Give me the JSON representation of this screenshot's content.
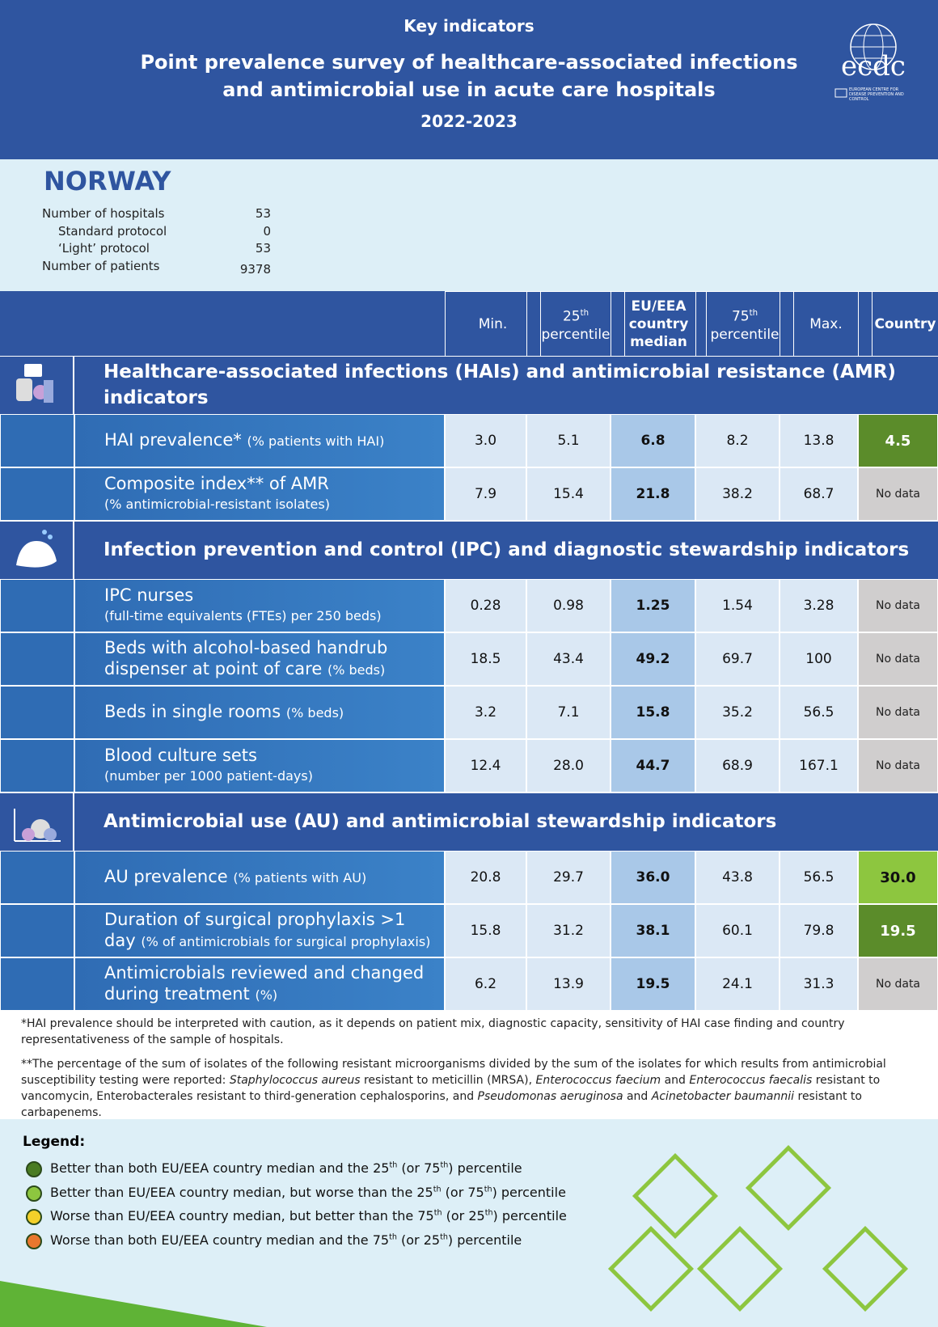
{
  "header": {
    "kicker": "Key indicators",
    "title": "Point prevalence survey of healthcare-associated infections and antimicrobial use in acute care hospitals",
    "years": "2022-2023",
    "logo": "ecdc",
    "logo_subtitle": "EUROPEAN CENTRE FOR DISEASE PREVENTION AND CONTROL"
  },
  "country": "NORWAY",
  "summary": [
    {
      "label": "Number of hospitals",
      "value": "53"
    },
    {
      "label": "Standard protocol",
      "value": "0",
      "indent": true
    },
    {
      "label": "‘Light’ protocol",
      "value": "53",
      "indent": true
    },
    {
      "label": "Number of patients",
      "value": "9378"
    }
  ],
  "table": {
    "columns": [
      {
        "parts": [
          {
            "text": "Min."
          }
        ]
      },
      {
        "parts": [
          {
            "text": "25"
          },
          {
            "text": "th",
            "sup": true
          },
          {
            "text": " percentile"
          }
        ]
      },
      {
        "parts": [
          {
            "text": "EU/EEA country median"
          }
        ],
        "bold": true,
        "highlight": true
      },
      {
        "parts": [
          {
            "text": "75"
          },
          {
            "text": "th",
            "sup": true
          },
          {
            "text": " percentile"
          }
        ]
      },
      {
        "parts": [
          {
            "text": "Max."
          }
        ]
      },
      {
        "parts": [
          {
            "text": "Country"
          }
        ],
        "bold": true
      }
    ],
    "sections": [
      {
        "title": "Healthcare-associated infections (HAIs) and antimicrobial resistance (AMR) indicators",
        "icon": "pills",
        "rows": [
          {
            "label": "HAI prevalence*",
            "unit": "(% patients with HAI)",
            "values": [
              "3.0",
              "5.1",
              "6.8",
              "8.2",
              "13.8"
            ],
            "country": {
              "text": "4.5",
              "color": "#5b8c2a"
            }
          },
          {
            "label": "Composite index** of AMR",
            "unit": "(% antimicrobial-resistant isolates)",
            "values": [
              "7.9",
              "15.4",
              "21.8",
              "38.2",
              "68.7"
            ],
            "country": {
              "text": "No data",
              "color": "#d0cece"
            }
          }
        ]
      },
      {
        "title": "Infection prevention and control (IPC) and diagnostic stewardship indicators",
        "icon": "hands",
        "rows": [
          {
            "label": "IPC nurses",
            "unit": "(full-time equivalents (FTEs) per 250 beds)",
            "values": [
              "0.28",
              "0.98",
              "1.25",
              "1.54",
              "3.28"
            ],
            "country": {
              "text": "No data",
              "color": "#d0cece"
            }
          },
          {
            "label": "Beds with alcohol-based handrub dispenser at point of care",
            "unit": "(% beds)",
            "values": [
              "18.5",
              "43.4",
              "49.2",
              "69.7",
              "100"
            ],
            "country": {
              "text": "No data",
              "color": "#d0cece"
            }
          },
          {
            "label": "Beds in single rooms",
            "unit": "(% beds)",
            "values": [
              "3.2",
              "7.1",
              "15.8",
              "35.2",
              "56.5"
            ],
            "country": {
              "text": "No data",
              "color": "#d0cece"
            }
          },
          {
            "label": "Blood culture sets",
            "unit": "(number per 1000 patient-days)",
            "values": [
              "12.4",
              "28.0",
              "44.7",
              "68.9",
              "167.1"
            ],
            "country": {
              "text": "No data",
              "color": "#d0cece"
            }
          }
        ]
      },
      {
        "title": "Antimicrobial use (AU) and antimicrobial stewardship indicators",
        "icon": "chart",
        "rows": [
          {
            "label": "AU prevalence",
            "unit": "(% patients with AU)",
            "values": [
              "20.8",
              "29.7",
              "36.0",
              "43.8",
              "56.5"
            ],
            "country": {
              "text": "30.0",
              "color": "#8dc63f"
            }
          },
          {
            "label": "Duration of surgical prophylaxis >1 day",
            "unit": "(% of antimicrobials for surgical prophylaxis)",
            "values": [
              "15.8",
              "31.2",
              "38.1",
              "60.1",
              "79.8"
            ],
            "country": {
              "text": "19.5",
              "color": "#5b8c2a"
            }
          },
          {
            "label": "Antimicrobials reviewed and changed during treatment",
            "unit": "(%)",
            "values": [
              "6.2",
              "13.9",
              "19.5",
              "24.1",
              "31.3"
            ],
            "country": {
              "text": "No data",
              "color": "#d0cece"
            }
          }
        ]
      }
    ]
  },
  "footnotes": [
    [
      {
        "text": "*HAI prevalence should be interpreted with caution, as it depends on patient mix, diagnostic capacity, sensitivity of HAI case finding and country representativeness of the sample of hospitals."
      }
    ],
    [
      {
        "text": "**The percentage of the sum of isolates of the following resistant microorganisms divided by the sum of the isolates for which results from antimicrobial susceptibility testing were reported: "
      },
      {
        "text": "Staphylococcus aureus",
        "italic": true
      },
      {
        "text": " resistant to meticillin (MRSA), "
      },
      {
        "text": "Enterococcus faecium",
        "italic": true
      },
      {
        "text": " and "
      },
      {
        "text": "Enterococcus faecalis",
        "italic": true
      },
      {
        "text": " resistant to vancomycin, Enterobacterales resistant to third-generation cephalosporins, and "
      },
      {
        "text": "Pseudomonas aeruginosa",
        "italic": true
      },
      {
        "text": " and "
      },
      {
        "text": "Acinetobacter baumannii",
        "italic": true
      },
      {
        "text": " resistant to carbapenems."
      }
    ]
  ],
  "legend": {
    "title": "Legend:",
    "items": [
      {
        "color": "#4a7c23",
        "parts": [
          {
            "text": "Better than both EU/EEA country median and the 25"
          },
          {
            "text": "th",
            "sup": true
          },
          {
            "text": " (or 75"
          },
          {
            "text": "th",
            "sup": true
          },
          {
            "text": ") percentile"
          }
        ]
      },
      {
        "color": "#8dc63f",
        "parts": [
          {
            "text": "Better than EU/EEA country median, but worse than the 25"
          },
          {
            "text": "th",
            "sup": true
          },
          {
            "text": " (or 75"
          },
          {
            "text": "th",
            "sup": true
          },
          {
            "text": ") percentile"
          }
        ]
      },
      {
        "color": "#f3d02a",
        "parts": [
          {
            "text": "Worse than EU/EEA country median, but better than the 75"
          },
          {
            "text": "th",
            "sup": true
          },
          {
            "text": " (or 25"
          },
          {
            "text": "th",
            "sup": true
          },
          {
            "text": ") percentile"
          }
        ]
      },
      {
        "color": "#e8772e",
        "parts": [
          {
            "text": "Worse than both EU/EEA country median and the 75"
          },
          {
            "text": "th",
            "sup": true
          },
          {
            "text": " (or 25"
          },
          {
            "text": "th",
            "sup": true
          },
          {
            "text": ") percentile"
          }
        ]
      }
    ]
  }
}
